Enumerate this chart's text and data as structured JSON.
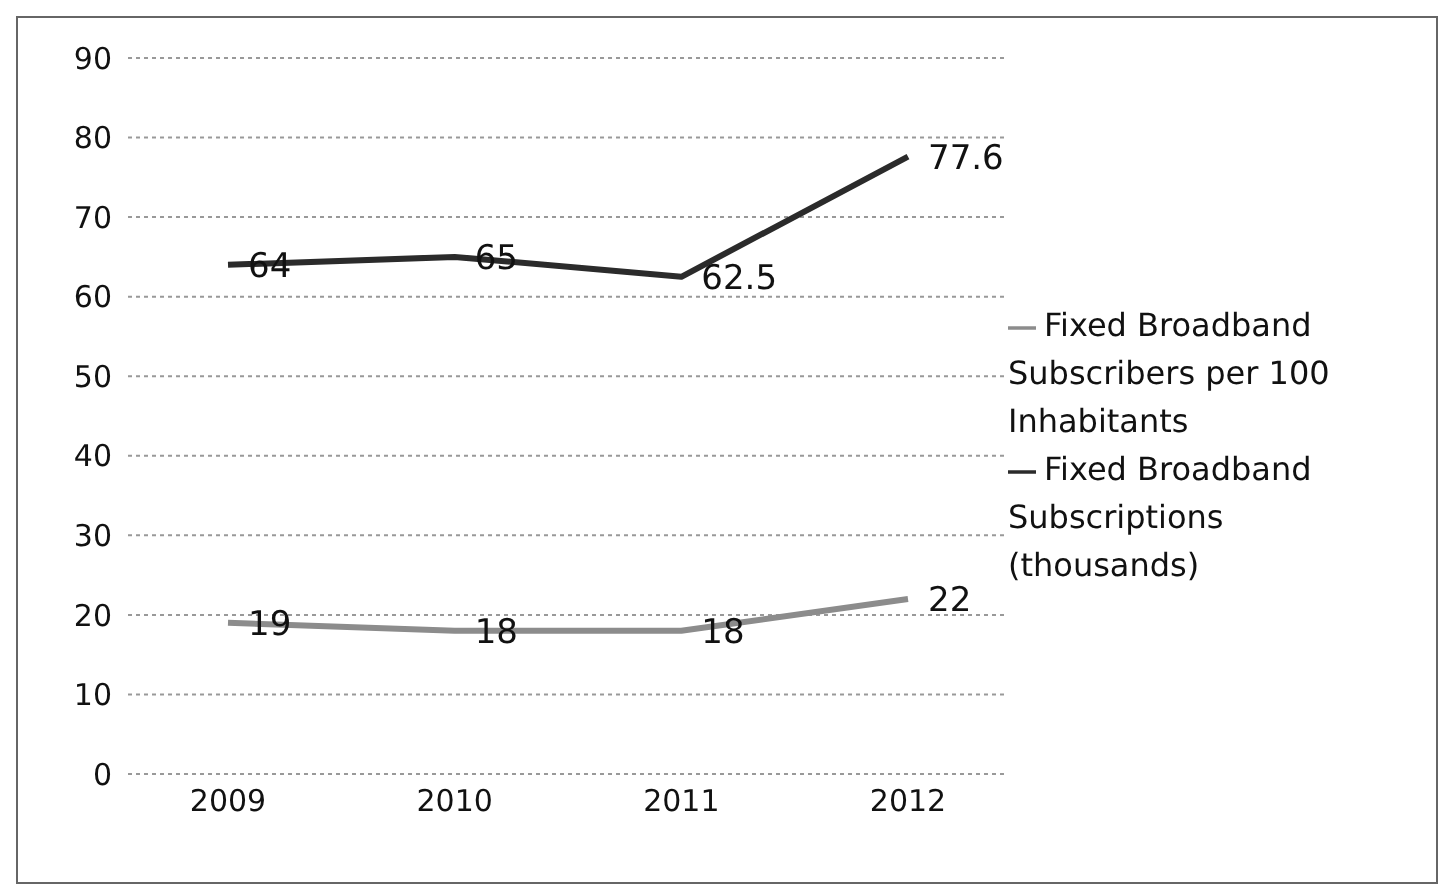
{
  "chart_data": {
    "type": "line",
    "categories": [
      "2009",
      "2010",
      "2011",
      "2012"
    ],
    "series": [
      {
        "name": "Fixed Broadband Subscribers per 100 Inhabitants",
        "color": "#8c8c8c",
        "values": [
          19,
          18,
          18,
          22
        ]
      },
      {
        "name": "Fixed Broadband Subscriptions (thousands)",
        "color": "#2b2b2b",
        "values": [
          64,
          65,
          62.5,
          77.6
        ]
      }
    ],
    "ylim": [
      0,
      90
    ],
    "yticks": [
      0,
      10,
      20,
      30,
      40,
      50,
      60,
      70,
      80,
      90
    ],
    "grid": "y",
    "legend": "right",
    "data_labels": true,
    "marker": "none",
    "line_style": "solid"
  }
}
